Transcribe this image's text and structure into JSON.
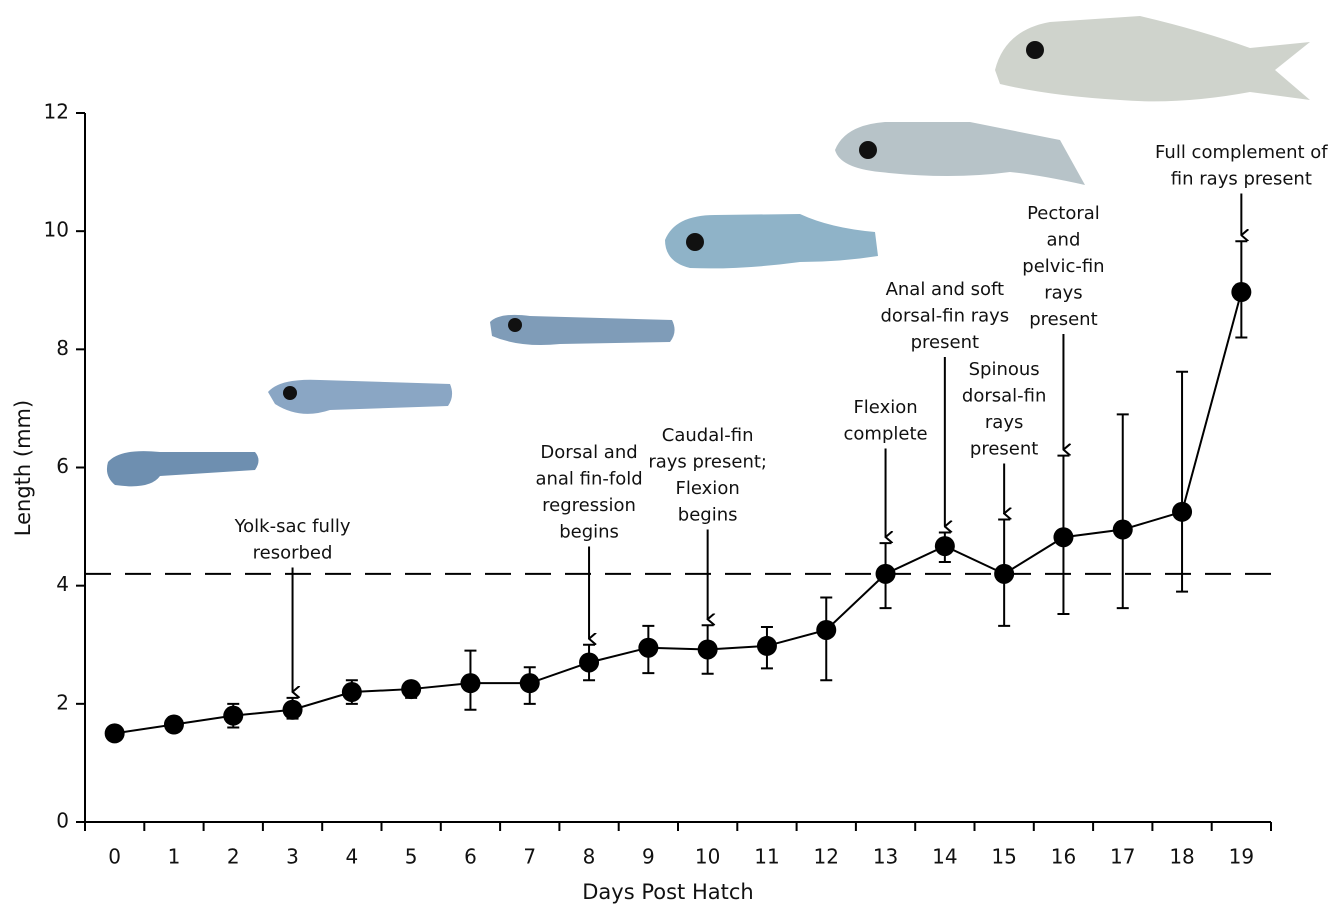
{
  "chart_data": {
    "type": "line",
    "x_label": "Days Post Hatch",
    "y_label": "Length (mm)",
    "x": [
      0,
      1,
      2,
      3,
      4,
      5,
      6,
      7,
      8,
      9,
      10,
      11,
      12,
      13,
      14,
      15,
      16,
      17,
      18,
      19
    ],
    "series": [
      {
        "color": "#000000",
        "values": [
          1.5,
          1.65,
          1.8,
          1.9,
          2.2,
          2.25,
          2.35,
          2.35,
          2.7,
          2.95,
          2.92,
          2.98,
          3.25,
          4.2,
          4.67,
          4.2,
          4.82,
          4.95,
          5.25,
          8.97
        ],
        "err_plus": [
          null,
          null,
          0.2,
          0.2,
          0.2,
          0.12,
          0.55,
          0.27,
          0.3,
          0.37,
          0.41,
          0.32,
          0.55,
          0.52,
          0.23,
          0.92,
          1.38,
          1.95,
          2.37,
          0.86
        ],
        "err_minus": [
          null,
          null,
          0.2,
          0.15,
          0.2,
          0.15,
          0.45,
          0.35,
          0.3,
          0.43,
          0.41,
          0.38,
          0.85,
          0.58,
          0.27,
          0.88,
          1.3,
          1.33,
          1.35,
          0.77
        ]
      }
    ],
    "reference_line": 4.2,
    "xlim": [
      -0.5,
      19.5
    ],
    "xticks": [
      0,
      1,
      2,
      3,
      4,
      5,
      6,
      7,
      8,
      9,
      10,
      11,
      12,
      13,
      14,
      15,
      16,
      17,
      18,
      19
    ],
    "ylim": [
      0,
      12
    ],
    "yticks": [
      0,
      2,
      4,
      6,
      8,
      10,
      12
    ],
    "annotations": [
      {
        "x": 3,
        "lines": [
          "Yolk-sac fully",
          "resorbed"
        ]
      },
      {
        "x": 8,
        "lines": [
          "Dorsal and",
          "anal fin-fold",
          "regression",
          "begins"
        ]
      },
      {
        "x": 10,
        "lines": [
          "Caudal-fin",
          "rays present;",
          "Flexion",
          "begins"
        ]
      },
      {
        "x": 13,
        "lines": [
          "Flexion",
          "complete"
        ]
      },
      {
        "x": 14,
        "lines": [
          "Anal and soft",
          "dorsal-fin rays",
          "present"
        ]
      },
      {
        "x": 15,
        "lines": [
          "Spinous",
          "dorsal-fin",
          "rays",
          "present"
        ]
      },
      {
        "x": 16,
        "lines": [
          "Pectoral",
          "and",
          "pelvic-fin",
          "rays",
          "present"
        ]
      },
      {
        "x": 19,
        "lines": [
          "Full complement of",
          "fin rays present"
        ]
      }
    ]
  }
}
